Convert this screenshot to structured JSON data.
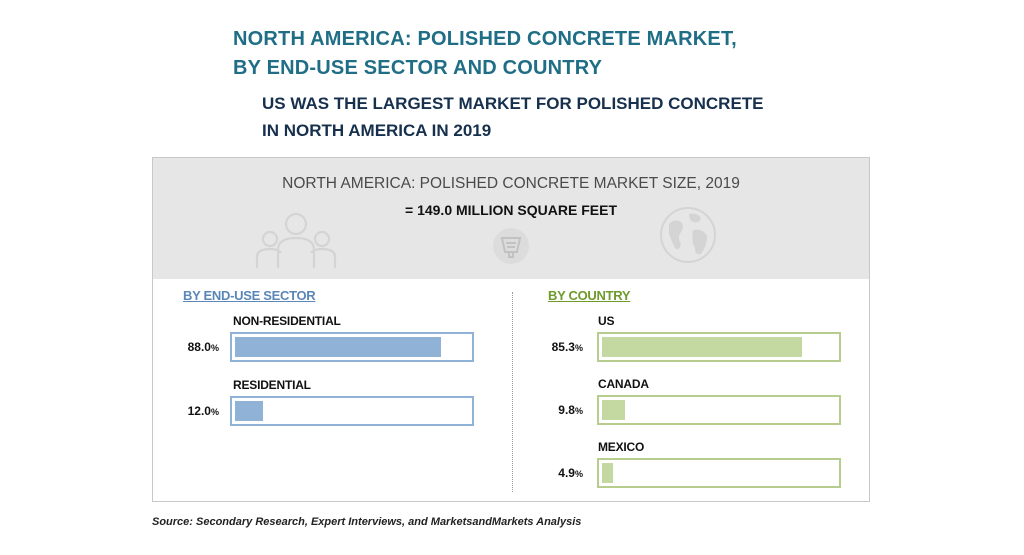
{
  "header": {
    "title_line1": "NORTH AMERICA: POLISHED CONCRETE MARKET,",
    "title_line2": "BY END-USE SECTOR AND COUNTRY",
    "subtitle_line1": "US WAS THE LARGEST MARKET FOR POLISHED CONCRETE",
    "subtitle_line2": "IN NORTH AMERICA IN 2019"
  },
  "banner": {
    "title": "NORTH AMERICA: POLISHED CONCRETE MARKET SIZE, 2019",
    "value": "=  149.0 MILLION SQUARE FEET",
    "icons": [
      "people-icon",
      "concrete-mixer-icon",
      "globe-icon"
    ]
  },
  "colors": {
    "end_use_fill": "#8fb2d6",
    "end_use_border": "#8fb2d6",
    "end_use_head": "#5b87b8",
    "country_fill": "#c4d8a2",
    "country_border": "#b6cd8e",
    "country_head": "#6f9a2c"
  },
  "chart_data": [
    {
      "type": "bar",
      "title": "BY END-USE SECTOR",
      "categories": [
        "NON-RESIDENTIAL",
        "RESIDENTIAL"
      ],
      "values": [
        88.0,
        12.0
      ],
      "value_labels": [
        "88.0",
        "12.0"
      ],
      "unit": "%",
      "xlim": [
        0,
        100
      ]
    },
    {
      "type": "bar",
      "title": "BY COUNTRY",
      "categories": [
        "US",
        "CANADA",
        "MEXICO"
      ],
      "values": [
        85.3,
        9.8,
        4.9
      ],
      "value_labels": [
        "85.3",
        "9.8",
        "4.9"
      ],
      "unit": "%",
      "xlim": [
        0,
        100
      ]
    }
  ],
  "source": "Source: Secondary Research, Expert Interviews, and MarketsandMarkets Analysis"
}
